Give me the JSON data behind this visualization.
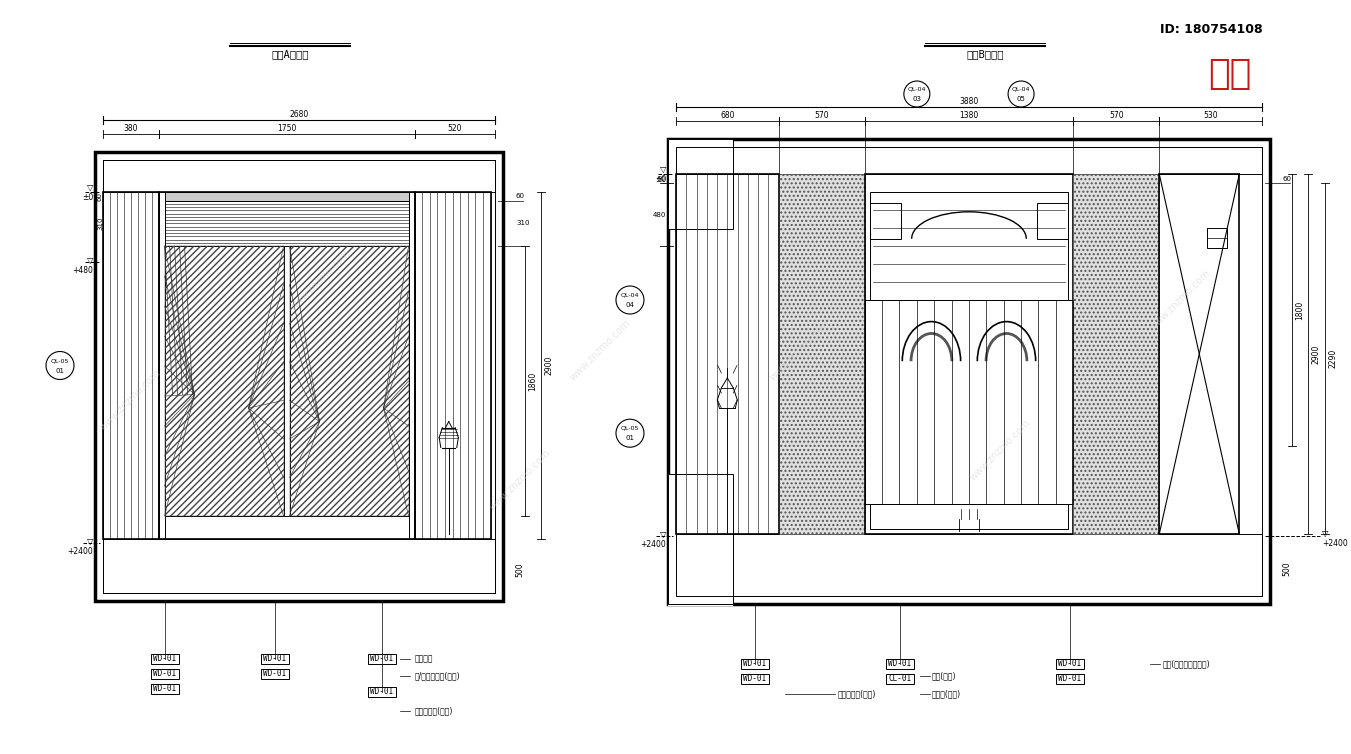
{
  "bg_color": "#ffffff",
  "line_color": "#000000",
  "title_A": "次卧A立面图",
  "title_B": "次卧B立面图",
  "id_text": "ID: 180754108",
  "logo_text": "知末"
}
